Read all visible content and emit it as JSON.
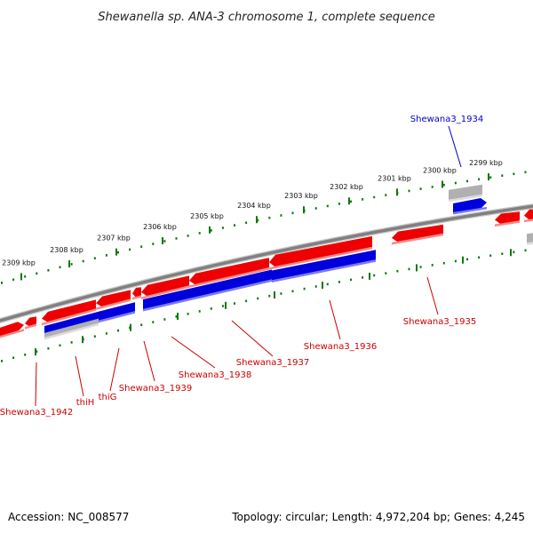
{
  "title": "Shewanella sp. ANA-3 chromosome 1, complete sequence",
  "footer": {
    "accession": "Accession: NC_008577",
    "topology": "Topology: circular; Length: 4,972,204 bp; Genes: 4,245"
  },
  "colors": {
    "forward": "#ee0000",
    "reverse": "#0000dd",
    "other": "#b0b0b0",
    "backbone": "#808080",
    "ticks": "#117711",
    "label_forward": "#cc0000",
    "label_reverse": "#0000cc"
  },
  "ruler": {
    "unit": "kbp",
    "labels": [
      "2309 kbp",
      "2308 kbp",
      "2307 kbp",
      "2306 kbp",
      "2305 kbp",
      "2304 kbp",
      "2303 kbp",
      "2302 kbp",
      "2301 kbp",
      "2300 kbp",
      "2299 kbp"
    ]
  },
  "genes": [
    {
      "label": "Shewana3_1934",
      "strand": "reverse"
    },
    {
      "label": "Shewana3_1935",
      "strand": "forward"
    },
    {
      "label": "Shewana3_1936",
      "strand": "forward"
    },
    {
      "label": "Shewana3_1937",
      "strand": "forward"
    },
    {
      "label": "Shewana3_1938",
      "strand": "forward"
    },
    {
      "label": "Shewana3_1939",
      "strand": "forward"
    },
    {
      "label": "thiG",
      "strand": "forward"
    },
    {
      "label": "thiH",
      "strand": "forward"
    },
    {
      "label": "Shewana3_1942",
      "strand": "forward"
    }
  ]
}
